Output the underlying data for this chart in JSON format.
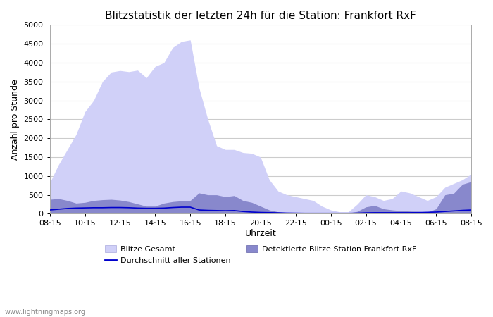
{
  "title": "Blitzstatistik der letzten 24h für die Station: Frankfort RxF",
  "xlabel": "Uhrzeit",
  "ylabel": "Anzahl pro Stunde",
  "xlabels": [
    "08:15",
    "10:15",
    "12:15",
    "14:15",
    "16:15",
    "18:15",
    "20:15",
    "22:15",
    "00:15",
    "02:15",
    "04:15",
    "06:15",
    "08:15"
  ],
  "ylim": [
    0,
    5000
  ],
  "yticks": [
    0,
    500,
    1000,
    1500,
    2000,
    2500,
    3000,
    3500,
    4000,
    4500,
    5000
  ],
  "background_color": "#ffffff",
  "plot_bg_color": "#ffffff",
  "grid_color": "#cccccc",
  "watermark": "www.lightningmaps.org",
  "legend": {
    "blitze_gesamt_label": "Blitze Gesamt",
    "detektierte_label": "Detektierte Blitze Station Frankfort RxF",
    "durchschnitt_label": "Durchschnitt aller Stationen"
  },
  "colors": {
    "blitze_gesamt_fill": "#d0d0f8",
    "detektierte_fill": "#8888cc",
    "durchschnitt_line": "#0000cc"
  },
  "n_points": 49,
  "blitze_gesamt": [
    820,
    1300,
    1700,
    2100,
    2700,
    3000,
    3500,
    3750,
    3790,
    3760,
    3800,
    3600,
    3900,
    4000,
    4400,
    4560,
    4600,
    3330,
    2500,
    1800,
    1700,
    1700,
    1620,
    1600,
    1500,
    900,
    600,
    500,
    450,
    400,
    350,
    200,
    100,
    50,
    50,
    250,
    500,
    450,
    350,
    400,
    600,
    550,
    450,
    350,
    450,
    700,
    800,
    900,
    1050
  ],
  "detektierte_blitze": [
    380,
    400,
    350,
    280,
    300,
    350,
    370,
    380,
    360,
    320,
    260,
    200,
    200,
    280,
    320,
    340,
    350,
    550,
    500,
    500,
    450,
    480,
    350,
    300,
    200,
    100,
    50,
    30,
    30,
    20,
    20,
    20,
    20,
    20,
    20,
    60,
    180,
    220,
    130,
    100,
    80,
    70,
    60,
    40,
    130,
    500,
    540,
    780,
    850
  ],
  "durchschnitt": [
    100,
    120,
    140,
    150,
    155,
    160,
    160,
    165,
    165,
    160,
    150,
    145,
    145,
    150,
    165,
    175,
    175,
    100,
    90,
    85,
    80,
    85,
    60,
    45,
    35,
    30,
    25,
    18,
    15,
    12,
    12,
    12,
    12,
    12,
    12,
    15,
    25,
    28,
    28,
    28,
    28,
    28,
    32,
    38,
    45,
    60,
    75,
    90,
    100
  ]
}
